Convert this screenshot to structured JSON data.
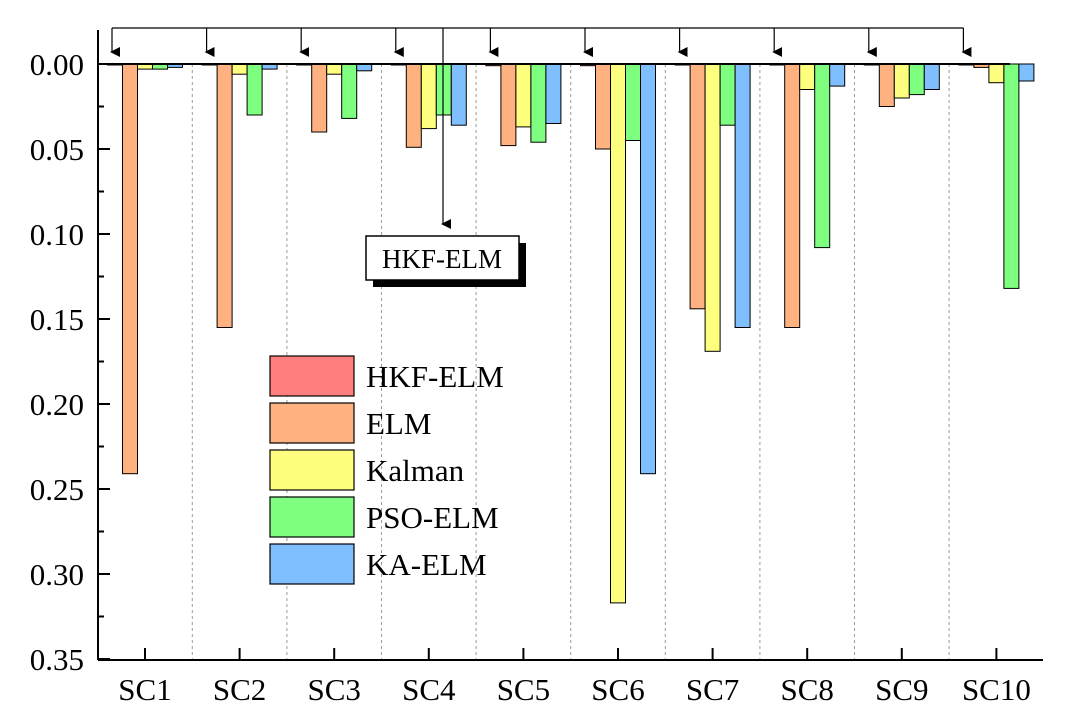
{
  "chart_data": {
    "type": "bar",
    "orientation": "inverted-y",
    "categories": [
      "SC1",
      "SC2",
      "SC3",
      "SC4",
      "SC5",
      "SC6",
      "SC7",
      "SC8",
      "SC9",
      "SC10"
    ],
    "series": [
      {
        "name": "HKF-ELM",
        "color": "#ff7f7f",
        "values": [
          0.0,
          0.0,
          0.0,
          0.0,
          0.001,
          0.001,
          0.0,
          0.0,
          0.0,
          0.0
        ]
      },
      {
        "name": "ELM",
        "color": "#ffb27f",
        "values": [
          0.241,
          0.155,
          0.04,
          0.049,
          0.048,
          0.05,
          0.144,
          0.155,
          0.025,
          0.002
        ]
      },
      {
        "name": "Kalman",
        "color": "#ffff7f",
        "values": [
          0.003,
          0.006,
          0.006,
          0.038,
          0.037,
          0.317,
          0.169,
          0.015,
          0.02,
          0.011
        ]
      },
      {
        "name": "PSO-ELM",
        "color": "#7fff7f",
        "values": [
          0.003,
          0.03,
          0.032,
          0.03,
          0.046,
          0.045,
          0.036,
          0.108,
          0.018,
          0.132
        ]
      },
      {
        "name": "KA-ELM",
        "color": "#7fbfff",
        "values": [
          0.002,
          0.003,
          0.004,
          0.036,
          0.035,
          0.241,
          0.155,
          0.013,
          0.015,
          0.01
        ]
      }
    ],
    "yaxis": {
      "ylim": [
        0.0,
        0.35
      ],
      "inverted": true,
      "ticks": [
        "0.00",
        "0.05",
        "0.10",
        "0.15",
        "0.20",
        "0.25",
        "0.30",
        "0.35"
      ],
      "tick_values": [
        0.0,
        0.05,
        0.1,
        0.15,
        0.2,
        0.25,
        0.3,
        0.35
      ]
    },
    "title": "",
    "xlabel": "",
    "ylabel": "",
    "legend": {
      "placement": "center-left",
      "entries": [
        "HKF-ELM",
        "ELM",
        "Kalman",
        "PSO-ELM",
        "KA-ELM"
      ]
    },
    "annotation": {
      "text": "HKF-ELM",
      "target_series": "HKF-ELM"
    },
    "category_separators": "dashed",
    "grid": false
  }
}
